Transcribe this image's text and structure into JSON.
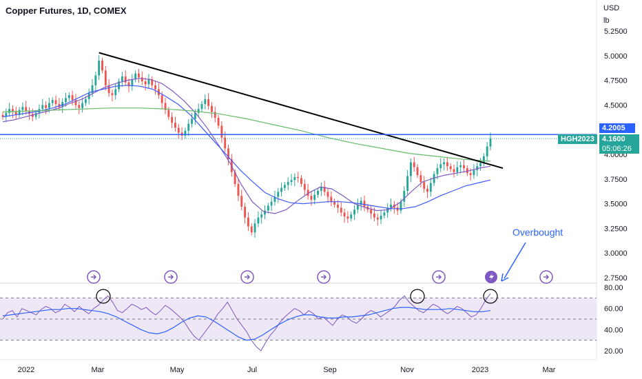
{
  "header": {
    "title": "Copper Futures, 1D, COMEX",
    "currency": "USD",
    "unit": "lb"
  },
  "price_badges": {
    "level_line": "4.2005",
    "symbol": "HGH2023",
    "last_price": "4.1600",
    "countdown": "05:06:26"
  },
  "annotation": {
    "text": "Overbought"
  },
  "colors": {
    "up": "#26a69a",
    "down": "#ef5350",
    "ma_fast": "#7e57c2",
    "ma_mid": "#3d5afe",
    "ma_slow": "#66bb6a",
    "trendline": "#000000",
    "level_line": "#2962ff",
    "rsi_line": "#7e57c2",
    "rsi_ma": "#2962ff",
    "rsi_band": "#ede7f6",
    "event_icon": "#7e57c2"
  },
  "chart_data": [
    {
      "type": "candlestick",
      "title": "Copper Futures, 1D, COMEX",
      "x_tick_labels": [
        "2022",
        "Mar",
        "May",
        "Jul",
        "Sep",
        "Nov",
        "2023",
        "Mar"
      ],
      "y_tick_labels": [
        "5.2500",
        "5.0000",
        "4.7500",
        "4.5000",
        "4.2500",
        "4.0000",
        "3.7500",
        "3.5000",
        "3.2500",
        "3.0000",
        "2.7500"
      ],
      "ylim": [
        2.72,
        5.35
      ],
      "closes": [
        4.38,
        4.42,
        4.46,
        4.43,
        4.4,
        4.45,
        4.48,
        4.44,
        4.41,
        4.38,
        4.42,
        4.46,
        4.5,
        4.47,
        4.52,
        4.55,
        4.51,
        4.48,
        4.53,
        4.57,
        4.6,
        4.55,
        4.5,
        4.47,
        4.52,
        4.56,
        4.62,
        4.7,
        4.8,
        4.95,
        4.85,
        4.7,
        4.62,
        4.6,
        4.66,
        4.74,
        4.79,
        4.73,
        4.69,
        4.76,
        4.82,
        4.78,
        4.74,
        4.71,
        4.76,
        4.7,
        4.66,
        4.6,
        4.52,
        4.45,
        4.38,
        4.32,
        4.27,
        4.22,
        4.19,
        4.24,
        4.31,
        4.36,
        4.42,
        4.46,
        4.51,
        4.56,
        4.49,
        4.43,
        4.37,
        4.29,
        4.17,
        4.06,
        3.95,
        3.82,
        3.7,
        3.58,
        3.47,
        3.36,
        3.27,
        3.21,
        3.3,
        3.36,
        3.39,
        3.43,
        3.48,
        3.52,
        3.57,
        3.62,
        3.66,
        3.69,
        3.72,
        3.74,
        3.77,
        3.76,
        3.7,
        3.64,
        3.58,
        3.54,
        3.59,
        3.63,
        3.67,
        3.62,
        3.57,
        3.52,
        3.49,
        3.46,
        3.41,
        3.37,
        3.35,
        3.39,
        3.44,
        3.49,
        3.53,
        3.47,
        3.44,
        3.4,
        3.36,
        3.34,
        3.38,
        3.41,
        3.46,
        3.49,
        3.46,
        3.43,
        3.52,
        3.63,
        3.78,
        3.92,
        3.87,
        3.79,
        3.72,
        3.65,
        3.62,
        3.71,
        3.8,
        3.86,
        3.9,
        3.92,
        3.88,
        3.85,
        3.82,
        3.87,
        3.89,
        3.86,
        3.81,
        3.79,
        3.84,
        3.88,
        3.91,
        3.98,
        4.08,
        4.16
      ],
      "series": [
        {
          "name": "",
          "type": "line",
          "values": [
            4.33,
            4.35,
            4.38,
            4.41,
            4.44,
            4.47,
            4.52,
            4.56,
            4.62,
            4.68,
            4.72,
            4.75,
            4.77,
            4.76,
            4.72,
            4.64,
            4.54,
            4.42,
            4.27,
            4.1,
            3.92,
            3.7,
            3.52,
            3.42,
            3.4,
            3.44,
            3.53,
            3.61,
            3.67,
            3.65,
            3.58,
            3.5,
            3.46,
            3.43,
            3.44,
            3.51,
            3.62,
            3.72,
            3.76,
            3.79,
            3.81,
            3.83,
            3.86,
            3.88
          ]
        },
        {
          "name": "",
          "type": "line",
          "values": [
            4.38,
            4.4,
            4.42,
            4.44,
            4.47,
            4.51,
            4.57,
            4.63,
            4.66,
            4.69,
            4.7,
            4.69,
            4.66,
            4.59,
            4.51,
            4.4,
            4.26,
            4.12,
            3.98,
            3.84,
            3.72,
            3.61,
            3.55,
            3.51,
            3.5,
            3.51,
            3.52,
            3.52,
            3.51,
            3.49,
            3.47,
            3.45,
            3.45,
            3.47,
            3.52,
            3.58,
            3.63,
            3.68,
            3.71,
            3.74
          ]
        },
        {
          "name": "",
          "type": "line",
          "values": [
            4.43,
            4.44,
            4.45,
            4.46,
            4.47,
            4.47,
            4.46,
            4.44,
            4.41,
            4.36,
            4.3,
            4.24,
            4.17,
            4.11,
            4.06,
            4.01,
            3.98,
            3.95,
            3.93
          ]
        },
        {
          "name": "",
          "type": "trendline",
          "from_close_at": 29,
          "to": 4.2
        },
        {
          "name": "",
          "type": "hline",
          "value": 4.2005
        }
      ]
    },
    {
      "type": "line",
      "title": "",
      "y_tick_labels": [
        "80.00",
        "60.00",
        "40.00",
        "20.00"
      ],
      "ylim": [
        15,
        82
      ],
      "bands": [
        70,
        50,
        30
      ],
      "series": [
        {
          "name": "",
          "values": [
            50,
            56,
            58,
            52,
            60,
            58,
            56,
            54,
            59,
            62,
            60,
            56,
            58,
            64,
            61,
            57,
            62,
            58,
            55,
            60,
            63,
            68,
            72,
            66,
            58,
            56,
            60,
            64,
            62,
            59,
            61,
            57,
            54,
            58,
            63,
            60,
            56,
            52,
            47,
            40,
            34,
            30,
            36,
            42,
            48,
            55,
            60,
            66,
            58,
            50,
            44,
            38,
            30,
            24,
            20,
            28,
            35,
            40,
            47,
            52,
            56,
            60,
            58,
            54,
            58,
            55,
            50,
            52,
            48,
            44,
            50,
            54,
            52,
            48,
            46,
            50,
            55,
            58,
            56,
            52,
            55,
            58,
            62,
            68,
            72,
            66,
            62,
            58,
            56,
            60,
            64,
            62,
            58,
            55,
            58,
            62,
            60,
            56,
            52,
            54,
            60,
            68,
            74
          ]
        },
        {
          "name": "",
          "values": [
            53,
            54,
            55,
            56,
            57,
            58,
            59,
            59,
            60,
            60,
            59,
            58,
            57,
            55,
            52,
            48,
            44,
            40,
            37,
            36,
            38,
            42,
            47,
            51,
            53,
            52,
            48,
            43,
            38,
            33,
            30,
            31,
            35,
            40,
            45,
            49,
            52,
            54,
            54,
            52,
            51,
            51,
            52,
            52,
            53,
            54,
            56,
            58,
            60,
            61,
            61,
            60,
            59,
            59,
            59,
            60,
            59,
            58,
            57,
            57,
            58
          ]
        }
      ]
    }
  ]
}
